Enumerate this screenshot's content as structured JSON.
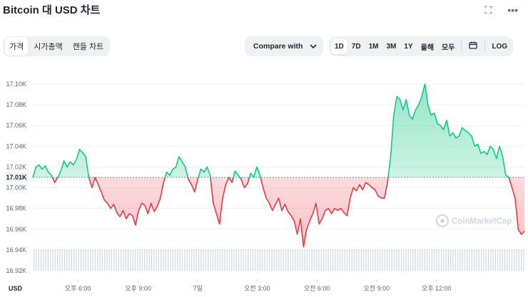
{
  "header": {
    "title": "Bitcoin 대 USD 차트",
    "fullscreen_icon": "expand-icon",
    "more_icon": "more-dots-icon"
  },
  "tabs": [
    {
      "label": "가격",
      "active": true
    },
    {
      "label": "시가총액",
      "active": false
    },
    {
      "label": "캔들 차트",
      "active": false
    }
  ],
  "compare": {
    "label": "Compare with",
    "icon": "chevron-down-icon"
  },
  "ranges": [
    {
      "label": "1D",
      "active": true
    },
    {
      "label": "7D",
      "active": false
    },
    {
      "label": "1M",
      "active": false
    },
    {
      "label": "3M",
      "active": false
    },
    {
      "label": "1Y",
      "active": false
    },
    {
      "label": "올해",
      "active": false
    },
    {
      "label": "모두",
      "active": false
    }
  ],
  "calendar_icon": "calendar-icon",
  "log_label": "LOG",
  "watermark": "CoinMarketCap",
  "currency_label": "USD",
  "colors": {
    "up": "#16c784",
    "down": "#ea3943",
    "axis": "#58667e",
    "grid": "#eff2f5",
    "reference": "#808a9d",
    "volume": "#cfd6e4"
  },
  "chart_data": {
    "type": "line",
    "baseline": 17.01,
    "baseline_label": "17.01K",
    "y_ticks": [
      "17.10K",
      "17.08K",
      "17.06K",
      "17.04K",
      "17.02K",
      "17.00K",
      "16.98K",
      "16.96K",
      "16.94K",
      "16.92K"
    ],
    "y_tick_values": [
      17.1,
      17.08,
      17.06,
      17.04,
      17.02,
      17.0,
      16.98,
      16.96,
      16.94,
      16.92
    ],
    "ylim": [
      16.92,
      17.1
    ],
    "x_ticks": [
      "오후 6:00",
      "오후 9:00",
      "7일",
      "오전 3:00",
      "오전 6:00",
      "오전 9:00",
      "오후 12:00"
    ],
    "x_tick_positions": [
      0.0917,
      0.2142,
      0.3356,
      0.4563,
      0.5779,
      0.6993,
      0.8211
    ],
    "y_unit": "K USD",
    "values": [
      17.01,
      17.02,
      17.022,
      17.018,
      17.021,
      17.015,
      17.012,
      17.005,
      17.01,
      17.016,
      17.026,
      17.02,
      17.025,
      17.022,
      17.027,
      17.037,
      17.034,
      17.03,
      17.01,
      17.0,
      17.01,
      17.003,
      16.996,
      16.988,
      16.985,
      16.98,
      16.984,
      16.976,
      16.972,
      16.978,
      16.97,
      16.975,
      16.973,
      16.964,
      16.978,
      16.985,
      16.983,
      16.975,
      16.985,
      16.977,
      16.982,
      16.99,
      17.005,
      17.015,
      17.012,
      17.018,
      17.02,
      17.03,
      17.025,
      17.02,
      17.008,
      17.003,
      16.996,
      17.008,
      17.018,
      17.015,
      17.02,
      17.012,
      16.985,
      16.975,
      16.965,
      16.99,
      17.003,
      17.01,
      17.005,
      17.016,
      17.012,
      17.008,
      17.0,
      17.004,
      17.014,
      17.01,
      17.02,
      17.012,
      17.0,
      16.99,
      16.985,
      16.978,
      16.984,
      16.99,
      16.978,
      16.984,
      16.977,
      16.973,
      16.968,
      16.955,
      16.97,
      16.943,
      16.96,
      16.968,
      16.975,
      16.985,
      16.965,
      16.97,
      16.978,
      16.98,
      16.975,
      16.98,
      16.978,
      16.98,
      16.976,
      16.973,
      16.99,
      17.0,
      16.997,
      17.003,
      16.998,
      17.005,
      17.003,
      17.0,
      16.998,
      16.992,
      16.99,
      16.99,
      17.005,
      17.03,
      17.07,
      17.088,
      17.085,
      17.075,
      17.085,
      17.07,
      17.066,
      17.075,
      17.08,
      17.088,
      17.1,
      17.08,
      17.07,
      17.072,
      17.062,
      17.06,
      17.056,
      17.065,
      17.05,
      17.053,
      17.048,
      17.05,
      17.058,
      17.055,
      17.053,
      17.05,
      17.04,
      17.042,
      17.033,
      17.035,
      17.032,
      17.04,
      17.037,
      17.028,
      17.04,
      17.03,
      17.012,
      17.01,
      17.0,
      16.99,
      16.96,
      16.955,
      16.958
    ]
  }
}
